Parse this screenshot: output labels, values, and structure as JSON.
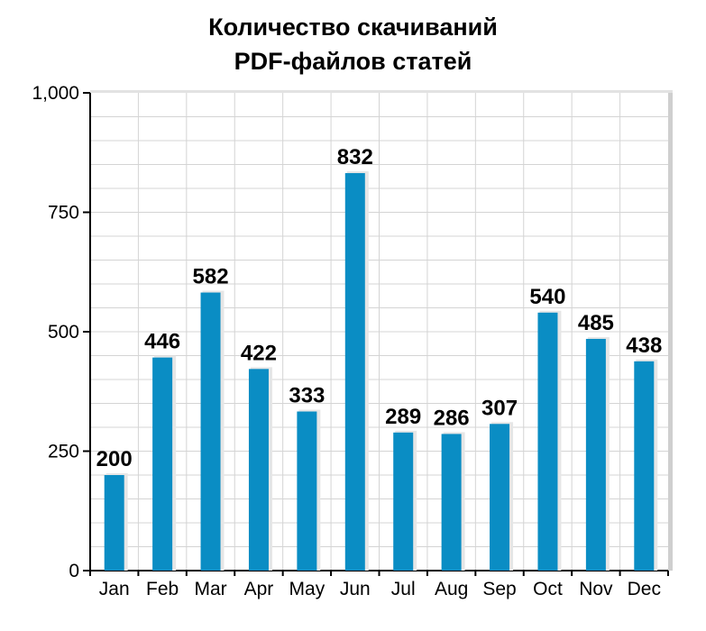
{
  "chart_data": {
    "type": "bar",
    "title": [
      "Количество скачиваний",
      "PDF-файлов статей"
    ],
    "categories": [
      "Jan",
      "Feb",
      "Mar",
      "Apr",
      "May",
      "Jun",
      "Jul",
      "Aug",
      "Sep",
      "Oct",
      "Nov",
      "Dec"
    ],
    "values": [
      200,
      446,
      582,
      422,
      333,
      832,
      289,
      286,
      307,
      540,
      485,
      438
    ],
    "ylim": [
      0,
      1000
    ],
    "yticks": [
      0,
      250,
      500,
      750,
      1000
    ],
    "ytick_labels": [
      "0",
      "250",
      "500",
      "750",
      "1,000"
    ],
    "grid": true,
    "legend": "none",
    "bar_color": "#0a8dc4",
    "grid_color": "#d4d4d4"
  }
}
